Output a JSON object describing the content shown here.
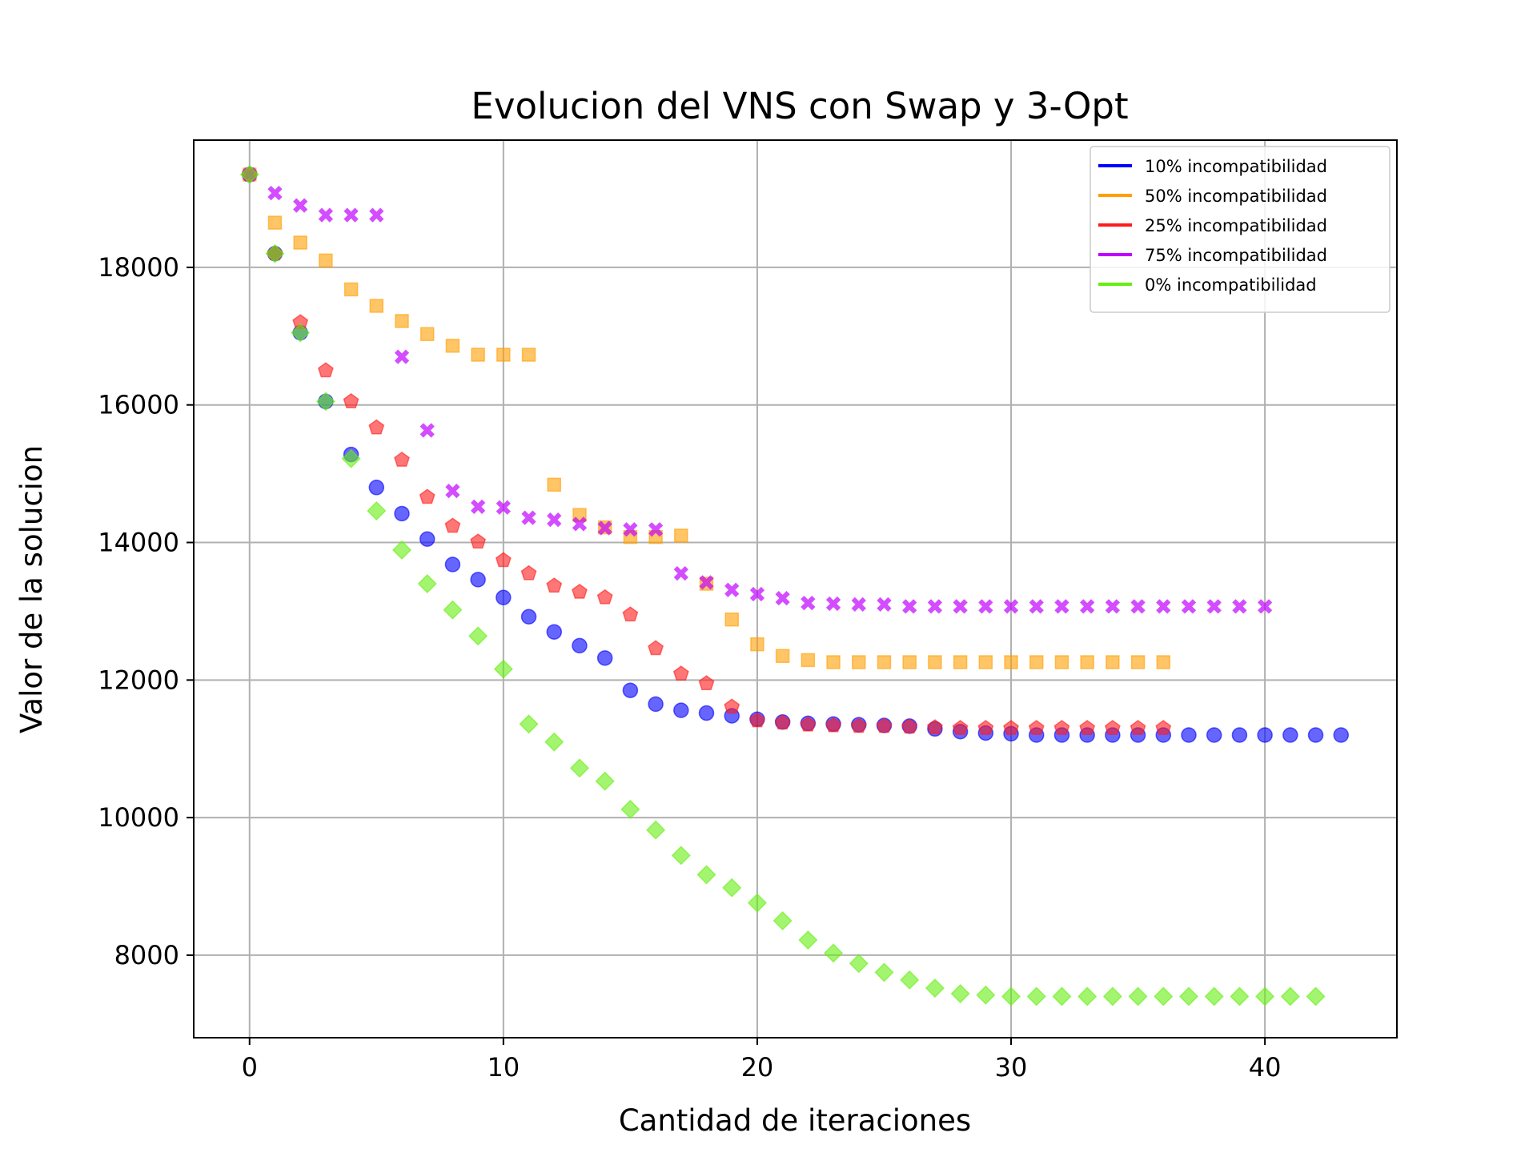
{
  "chart_data": {
    "type": "scatter",
    "title": "Evolucion del VNS con Swap y 3-Opt",
    "xlabel": "Cantidad de iteraciones",
    "ylabel": "Valor de la solucion",
    "xlim": [
      -2.2,
      45.2
    ],
    "ylim": [
      6800,
      19850
    ],
    "xticks": [
      0,
      10,
      20,
      30,
      40
    ],
    "yticks": [
      8000,
      10000,
      12000,
      14000,
      16000,
      18000
    ],
    "grid": true,
    "legend_position": "top-right",
    "series": [
      {
        "name": "10% incompatibilidad",
        "color": "#0000ff",
        "marker": "circle",
        "x": [
          0,
          1,
          2,
          3,
          4,
          5,
          6,
          7,
          8,
          9,
          10,
          11,
          12,
          13,
          14,
          15,
          16,
          17,
          18,
          19,
          20,
          21,
          22,
          23,
          24,
          25,
          26,
          27,
          28,
          29,
          30,
          31,
          32,
          33,
          34,
          35,
          36,
          37,
          38,
          39,
          40,
          41,
          42,
          43
        ],
        "values": [
          19350,
          18200,
          17050,
          16050,
          15280,
          14800,
          14420,
          14050,
          13680,
          13460,
          13200,
          12920,
          12700,
          12500,
          12320,
          11850,
          11650,
          11560,
          11520,
          11480,
          11430,
          11390,
          11370,
          11360,
          11350,
          11340,
          11330,
          11290,
          11250,
          11230,
          11220,
          11200,
          11200,
          11200,
          11200,
          11200,
          11200,
          11200,
          11200,
          11200,
          11200,
          11200,
          11200,
          11200
        ]
      },
      {
        "name": "50% incompatibilidad",
        "color": "#ff9f00",
        "marker": "square",
        "x": [
          0,
          1,
          2,
          3,
          4,
          5,
          6,
          7,
          8,
          9,
          10,
          11,
          12,
          13,
          14,
          15,
          16,
          17,
          18,
          19,
          20,
          21,
          22,
          23,
          24,
          25,
          26,
          27,
          28,
          29,
          30,
          31,
          32,
          33,
          34,
          35,
          36
        ],
        "values": [
          19350,
          18650,
          18360,
          18100,
          17680,
          17440,
          17220,
          17030,
          16860,
          16730,
          16730,
          16730,
          14840,
          14400,
          14220,
          14080,
          14080,
          14100,
          13400,
          12880,
          12520,
          12350,
          12290,
          12260,
          12260,
          12260,
          12260,
          12260,
          12260,
          12260,
          12260,
          12260,
          12260,
          12260,
          12260,
          12260,
          12260
        ]
      },
      {
        "name": "25% incompatibilidad",
        "color": "#ff1a1a",
        "marker": "pentagon",
        "x": [
          0,
          1,
          2,
          3,
          4,
          5,
          6,
          7,
          8,
          9,
          10,
          11,
          12,
          13,
          14,
          15,
          16,
          17,
          18,
          19,
          20,
          21,
          22,
          23,
          24,
          25,
          26,
          27,
          28,
          29,
          30,
          31,
          32,
          33,
          34,
          35,
          36
        ],
        "values": [
          19350,
          18200,
          17200,
          16500,
          16050,
          15670,
          15200,
          14660,
          14240,
          14010,
          13740,
          13550,
          13370,
          13280,
          13200,
          12950,
          12460,
          12090,
          11950,
          11610,
          11410,
          11380,
          11350,
          11340,
          11330,
          11330,
          11320,
          11310,
          11300,
          11300,
          11300,
          11300,
          11300,
          11300,
          11300,
          11300,
          11300
        ]
      },
      {
        "name": "75% incompatibilidad",
        "color": "#c000ff",
        "marker": "x",
        "x": [
          0,
          1,
          2,
          3,
          4,
          5,
          6,
          7,
          8,
          9,
          10,
          11,
          12,
          13,
          14,
          15,
          16,
          17,
          18,
          19,
          20,
          21,
          22,
          23,
          24,
          25,
          26,
          27,
          28,
          29,
          30,
          31,
          32,
          33,
          34,
          35,
          36,
          37,
          38,
          39,
          40
        ],
        "values": [
          19350,
          19080,
          18900,
          18760,
          18760,
          18760,
          16700,
          15630,
          14750,
          14520,
          14510,
          14360,
          14330,
          14270,
          14210,
          14190,
          14190,
          13550,
          13420,
          13310,
          13250,
          13190,
          13120,
          13110,
          13100,
          13100,
          13070,
          13070,
          13070,
          13070,
          13070,
          13070,
          13070,
          13070,
          13070,
          13070,
          13070,
          13070,
          13070,
          13070,
          13070
        ]
      },
      {
        "name": "0% incompatibilidad",
        "color": "#66ee11",
        "marker": "diamond",
        "x": [
          0,
          1,
          2,
          3,
          4,
          5,
          6,
          7,
          8,
          9,
          10,
          11,
          12,
          13,
          14,
          15,
          16,
          17,
          18,
          19,
          20,
          21,
          22,
          23,
          24,
          25,
          26,
          27,
          28,
          29,
          30,
          31,
          32,
          33,
          34,
          35,
          36,
          37,
          38,
          39,
          40,
          41,
          42
        ],
        "values": [
          19350,
          18200,
          17050,
          16050,
          15220,
          14460,
          13890,
          13400,
          13020,
          12640,
          12160,
          11360,
          11100,
          10720,
          10530,
          10120,
          9820,
          9450,
          9170,
          8980,
          8760,
          8500,
          8220,
          8030,
          7880,
          7750,
          7640,
          7520,
          7440,
          7420,
          7400,
          7400,
          7400,
          7400,
          7400,
          7400,
          7400,
          7400,
          7400,
          7400,
          7400,
          7400,
          7400
        ]
      }
    ]
  }
}
